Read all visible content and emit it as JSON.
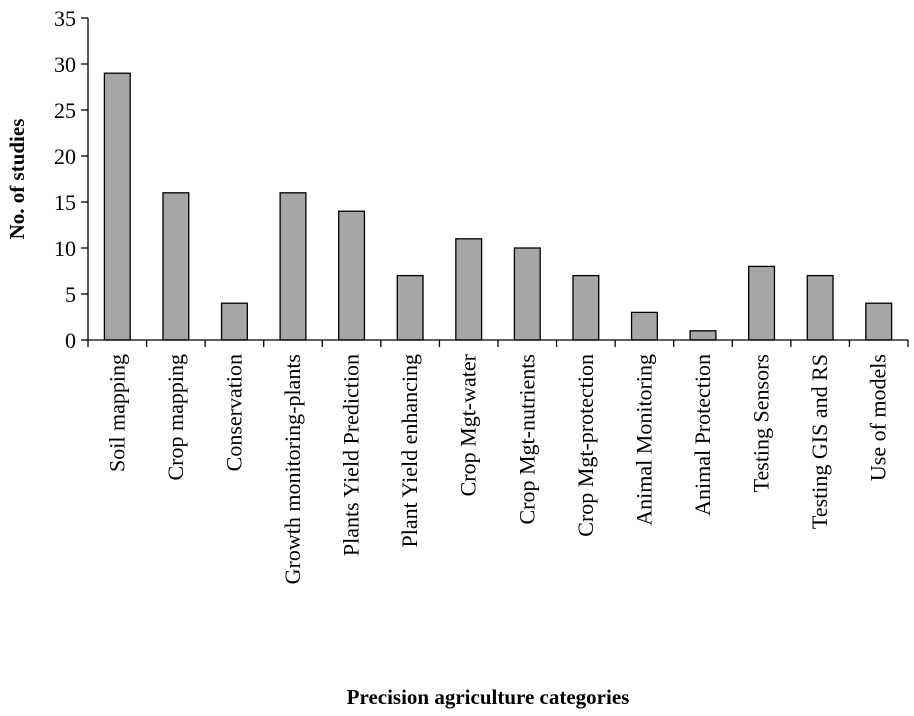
{
  "chart_data": {
    "type": "bar",
    "title": "",
    "xlabel": "Precision agriculture  categories",
    "ylabel": "No. of studies",
    "ylim": [
      0,
      35
    ],
    "yticks": [
      0,
      5,
      10,
      15,
      20,
      25,
      30,
      35
    ],
    "grid": false,
    "legend": "none",
    "bar_color": "#a6a6a6",
    "bar_edge_color": "#000000",
    "categories": [
      "Soil mapping",
      "Crop mapping",
      "Conservation",
      "Growth monitoring-plants",
      "Plants Yield Prediction",
      "Plant Yield enhancing",
      "Crop Mgt-water",
      "Crop Mgt-nutrients",
      "Crop Mgt-protection",
      "Animal Monitoring",
      "Animal Protection",
      "Testing Sensors",
      "Testing GIS and RS",
      "Use of models"
    ],
    "values": [
      29,
      16,
      4,
      16,
      14,
      7,
      11,
      10,
      7,
      3,
      1,
      8,
      7,
      4
    ]
  }
}
